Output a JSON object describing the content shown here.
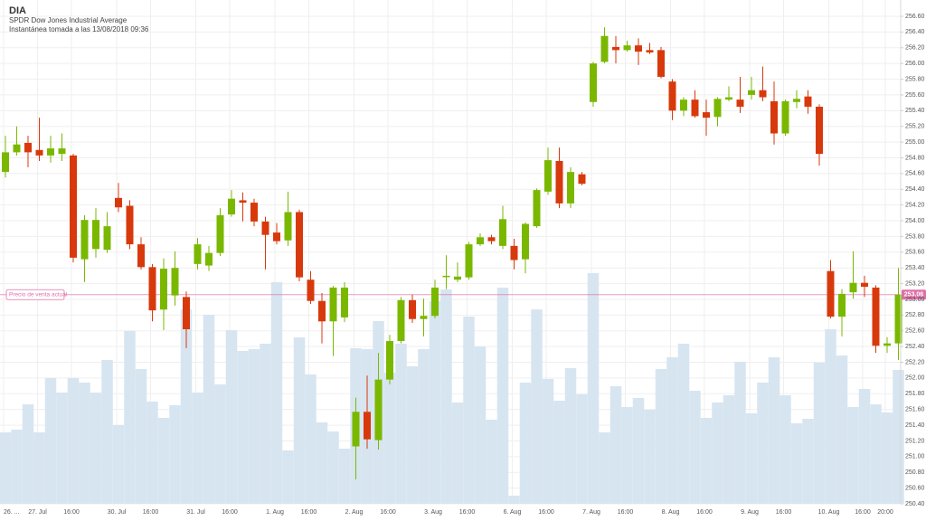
{
  "chart_data": {
    "type": "candlestick",
    "title": "DIA",
    "subtitle": "SPDR Dow Jones Industrial Average",
    "snapshot": "Instantánea tomada a las 13/08/2018 09:36",
    "categories": [
      "26. ...",
      null,
      null,
      "27. Jul",
      null,
      null,
      "16:00",
      null,
      null,
      null,
      "30. Jul",
      null,
      null,
      "16:00",
      null,
      null,
      null,
      "31. Jul",
      null,
      null,
      "16:00",
      null,
      null,
      null,
      "1. Aug",
      null,
      null,
      "16:00",
      null,
      null,
      null,
      "2. Aug",
      null,
      null,
      "16:00",
      null,
      null,
      null,
      "3. Aug",
      null,
      null,
      "16:00",
      null,
      null,
      null,
      "6. Aug",
      null,
      null,
      "16:00",
      null,
      null,
      null,
      "7. Aug",
      null,
      null,
      "16:00",
      null,
      null,
      null,
      "8. Aug",
      null,
      null,
      "16:00",
      null,
      null,
      null,
      "9. Aug",
      null,
      null,
      "16:00",
      null,
      null,
      null,
      "10. Aug",
      null,
      null,
      "16:00",
      null,
      "20:00",
      null
    ],
    "open": [
      254.62,
      254.87,
      254.99,
      254.9,
      254.83,
      254.85,
      254.83,
      253.51,
      253.64,
      253.63,
      254.29,
      254.19,
      253.7,
      253.41,
      252.87,
      253.05,
      253.03,
      253.45,
      253.43,
      253.59,
      254.08,
      254.26,
      254.23,
      253.99,
      253.85,
      253.75,
      254.11,
      253.25,
      252.98,
      252.72,
      252.77,
      251.13,
      251.57,
      251.21,
      251.98,
      252.47,
      252.99,
      252.75,
      252.79,
      253.29,
      253.25,
      253.28,
      253.7,
      253.79,
      253.68,
      253.68,
      253.51,
      253.93,
      254.37,
      254.76,
      254.22,
      254.59,
      255.51,
      256.02,
      256.21,
      256.17,
      256.23,
      256.17,
      256.17,
      255.77,
      255.4,
      255.54,
      255.38,
      255.32,
      255.54,
      255.54,
      255.6,
      255.66,
      255.52,
      255.11,
      255.51,
      255.58,
      255.45,
      253.36,
      252.78,
      253.09,
      253.21,
      253.15,
      252.41,
      252.44
    ],
    "high": [
      255.08,
      255.2,
      255.08,
      255.31,
      255.08,
      255.11,
      254.85,
      254.07,
      254.16,
      254.11,
      254.48,
      254.26,
      253.79,
      253.45,
      253.52,
      253.61,
      253.1,
      253.78,
      253.68,
      254.16,
      254.39,
      254.36,
      254.28,
      254.05,
      253.97,
      254.37,
      254.14,
      253.36,
      253.08,
      253.17,
      253.22,
      251.75,
      252.03,
      252.32,
      252.55,
      253.03,
      253.06,
      253.01,
      253.25,
      253.56,
      253.47,
      253.73,
      253.84,
      253.82,
      254.19,
      253.77,
      253.98,
      254.41,
      254.93,
      254.93,
      254.68,
      254.62,
      256.02,
      256.46,
      256.35,
      256.29,
      256.32,
      256.26,
      256.21,
      255.8,
      255.57,
      255.66,
      255.54,
      255.57,
      255.71,
      255.83,
      255.83,
      255.96,
      255.77,
      255.54,
      255.66,
      255.66,
      255.48,
      253.5,
      253.13,
      253.61,
      253.3,
      253.18,
      252.52,
      253.4
    ],
    "low": [
      254.55,
      254.83,
      254.68,
      254.76,
      254.74,
      254.76,
      253.47,
      253.22,
      253.53,
      253.59,
      254.11,
      253.64,
      253.38,
      252.72,
      252.61,
      252.92,
      252.38,
      253.38,
      253.36,
      253.55,
      254.05,
      253.99,
      253.93,
      253.38,
      253.7,
      253.68,
      253.23,
      252.94,
      252.44,
      252.28,
      252.71,
      250.71,
      251.1,
      251.09,
      251.92,
      252.44,
      252.7,
      252.53,
      252.76,
      253.13,
      253.22,
      253.25,
      253.68,
      253.7,
      253.64,
      253.38,
      253.33,
      253.91,
      254.33,
      254.16,
      254.16,
      254.45,
      255.45,
      256.0,
      256.0,
      256.15,
      255.98,
      256.12,
      255.81,
      255.28,
      255.33,
      255.31,
      255.08,
      255.2,
      255.52,
      255.37,
      255.54,
      255.52,
      254.97,
      255.08,
      255.43,
      255.36,
      254.7,
      252.76,
      252.53,
      253.01,
      253.03,
      252.32,
      252.32,
      252.23
    ],
    "close": [
      254.87,
      254.97,
      254.87,
      254.83,
      254.92,
      254.92,
      253.53,
      254.01,
      254.01,
      253.93,
      254.17,
      253.7,
      253.41,
      252.86,
      253.39,
      253.4,
      252.62,
      253.7,
      253.59,
      254.07,
      254.28,
      254.23,
      253.99,
      253.82,
      253.74,
      254.11,
      253.28,
      252.98,
      252.72,
      253.15,
      253.15,
      251.57,
      251.22,
      251.98,
      252.47,
      252.99,
      252.75,
      252.79,
      253.15,
      253.3,
      253.29,
      253.7,
      253.79,
      253.74,
      254.02,
      253.5,
      253.96,
      254.39,
      254.77,
      254.22,
      254.62,
      254.47,
      256.0,
      256.35,
      256.17,
      256.23,
      256.15,
      256.14,
      255.83,
      255.4,
      255.54,
      255.33,
      255.31,
      255.55,
      255.57,
      255.45,
      255.66,
      255.57,
      255.11,
      255.52,
      255.55,
      255.45,
      254.85,
      252.78,
      253.07,
      253.21,
      253.16,
      252.41,
      252.44,
      253.06
    ],
    "volume": [
      79,
      82,
      110,
      79,
      139,
      123,
      139,
      134,
      123,
      159,
      87,
      191,
      149,
      113,
      95,
      109,
      215,
      123,
      209,
      132,
      192,
      169,
      171,
      177,
      245,
      59,
      184,
      143,
      90,
      80,
      61,
      172,
      171,
      202,
      145,
      177,
      152,
      171,
      224,
      237,
      112,
      207,
      174,
      93,
      239,
      9,
      134,
      215,
      138,
      114,
      150,
      121,
      255,
      79,
      130,
      107,
      117,
      104,
      149,
      162,
      177,
      125,
      95,
      112,
      120,
      157,
      100,
      134,
      162,
      120,
      89,
      94,
      156,
      193,
      164,
      107,
      127,
      110,
      101,
      148
    ],
    "vlim": [
      0,
      539
    ],
    "up_color": "#7ab800",
    "down_color": "#d8390c",
    "volume_color": "#d7e5f1",
    "current_price": 253.06,
    "current_price_annotation": "Precio de venta actual",
    "current_price_color": "#e070a8",
    "ylim": [
      250.4,
      256.6
    ],
    "yticks": [
      {
        "value": 256.6,
        "label": "256.60"
      },
      {
        "value": 256.4,
        "label": "256.40"
      },
      {
        "value": 256.2,
        "label": "256.20"
      },
      {
        "value": 256.0,
        "label": "256.00"
      },
      {
        "value": 255.8,
        "label": "255.80"
      },
      {
        "value": 255.6,
        "label": "255.60"
      },
      {
        "value": 255.4,
        "label": "255.40"
      },
      {
        "value": 255.2,
        "label": "255.20"
      },
      {
        "value": 255.0,
        "label": "255.00"
      },
      {
        "value": 254.8,
        "label": "254.80"
      },
      {
        "value": 254.6,
        "label": "254.60"
      },
      {
        "value": 254.4,
        "label": "254.40"
      },
      {
        "value": 254.2,
        "label": "254.20"
      },
      {
        "value": 254.0,
        "label": "254.00"
      },
      {
        "value": 253.8,
        "label": "253.80"
      },
      {
        "value": 253.6,
        "label": "253.60"
      },
      {
        "value": 253.4,
        "label": "253.40"
      },
      {
        "value": 253.2,
        "label": "253.20"
      },
      {
        "value": 253.0,
        "label": "253.00"
      },
      {
        "value": 252.8,
        "label": "252.80"
      },
      {
        "value": 252.6,
        "label": "252.60"
      },
      {
        "value": 252.4,
        "label": "252.40"
      },
      {
        "value": 252.2,
        "label": "252.20"
      },
      {
        "value": 252.0,
        "label": "252.00"
      },
      {
        "value": 251.8,
        "label": "251.80"
      },
      {
        "value": 251.6,
        "label": "251.60"
      },
      {
        "value": 251.4,
        "label": "251.40"
      },
      {
        "value": 251.2,
        "label": "251.20"
      },
      {
        "value": 251.0,
        "label": "251.00"
      },
      {
        "value": 250.8,
        "label": "250.80"
      },
      {
        "value": 250.6,
        "label": "250.60"
      },
      {
        "value": 250.4,
        "label": "250.40"
      }
    ],
    "grid": true
  }
}
